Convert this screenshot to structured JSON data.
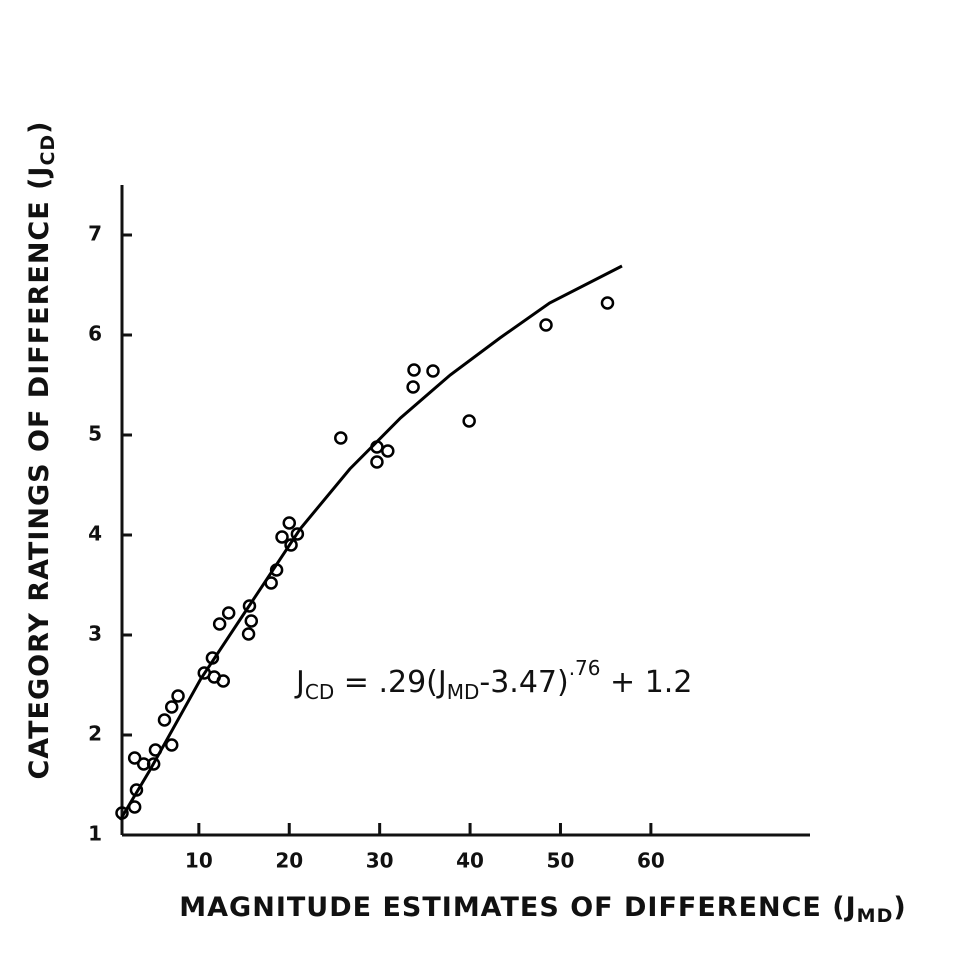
{
  "chart_data": {
    "type": "scatter",
    "y_label": {
      "text": "CATEGORY RATINGS OF DIFFERENCE (J",
      "sub": "CD",
      "end": ")"
    },
    "x_label": {
      "text": "MAGNITUDE ESTIMATES OF DIFFERENCE (J",
      "sub": "MD",
      "end": ")"
    },
    "annotation": [
      {
        "text": "J"
      },
      {
        "text": "CD",
        "sub": true
      },
      {
        "text": " = .29(J"
      },
      {
        "text": "MD",
        "sub": true
      },
      {
        "text": "-3.47)"
      },
      {
        "text": ".76",
        "sup": true
      },
      {
        "text": " + 1.2"
      }
    ],
    "x": [
      1.5,
      2.9,
      3.1,
      2.9,
      3.9,
      5.0,
      5.2,
      6.2,
      7.0,
      7.0,
      7.7,
      10.6,
      11.5,
      11.7,
      12.7,
      12.3,
      13.3,
      15.6,
      15.8,
      15.5,
      18.0,
      18.6,
      19.2,
      20.0,
      20.2,
      20.9,
      25.7,
      29.7,
      29.7,
      30.9,
      33.7,
      33.8,
      35.9,
      39.9,
      48.4,
      55.2
    ],
    "values": [
      1.22,
      1.28,
      1.45,
      1.77,
      1.71,
      1.71,
      1.85,
      2.15,
      2.28,
      1.9,
      2.39,
      2.62,
      2.77,
      2.58,
      2.54,
      3.11,
      3.22,
      3.29,
      3.14,
      3.01,
      3.52,
      3.65,
      3.98,
      4.12,
      3.9,
      4.01,
      4.97,
      4.88,
      4.73,
      4.84,
      5.48,
      5.65,
      5.64,
      5.14,
      6.1,
      6.32
    ],
    "color": "#000000",
    "curve": {
      "type": "line",
      "color": "#000000",
      "x": [
        1.3,
        4.6,
        10.2,
        15.7,
        21.2,
        26.7,
        32.3,
        37.8,
        43.3,
        48.8,
        56.8
      ],
      "values": [
        1.15,
        1.65,
        2.56,
        3.31,
        4.06,
        4.66,
        5.17,
        5.6,
        5.97,
        6.32,
        6.69
      ]
    },
    "xlim": [
      1.5,
      77.6
    ],
    "ylim": [
      1,
      7.5
    ],
    "xticks": [
      10,
      20,
      30,
      40,
      50,
      60
    ],
    "yticks": [
      1,
      2,
      3,
      4,
      5,
      6,
      7
    ],
    "grid": false
  }
}
